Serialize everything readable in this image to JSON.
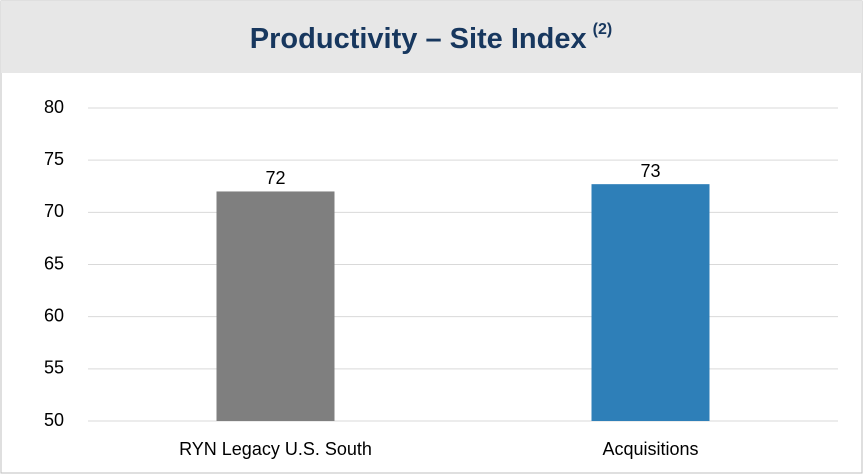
{
  "chart_data": {
    "type": "bar",
    "title": "Productivity – Site Index",
    "title_note": "(2)",
    "categories": [
      "RYN Legacy U.S. South",
      "Acquisitions"
    ],
    "values": [
      72,
      72.7
    ],
    "value_labels": [
      "72",
      "73"
    ],
    "colors": [
      "#7f7f7f",
      "#2e7fb8"
    ],
    "ylim": [
      50,
      80
    ],
    "yticks": [
      50,
      55,
      60,
      65,
      70,
      75,
      80
    ],
    "grid": true
  }
}
